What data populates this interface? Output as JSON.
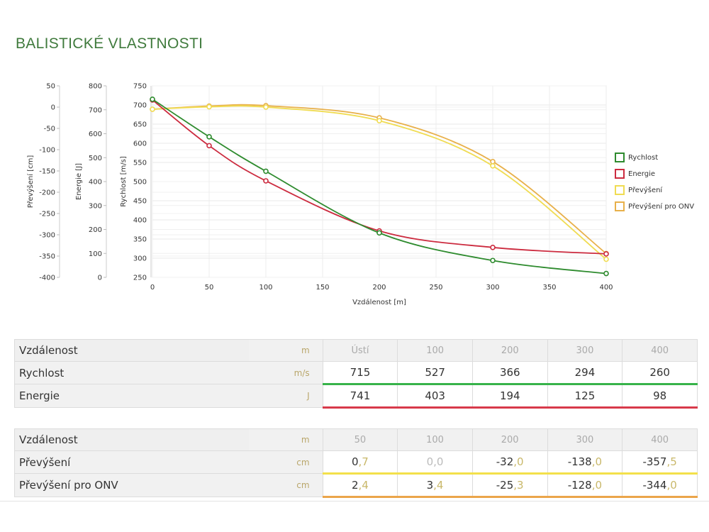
{
  "page": {
    "title": "BALISTICKÉ VLASTNOSTI"
  },
  "chart_data": {
    "type": "line",
    "x": [
      0,
      50,
      100,
      200,
      300,
      400
    ],
    "xlabel": "Vzdálenost [m]",
    "xlim": [
      0,
      400
    ],
    "xticks": [
      "0",
      "50",
      "100",
      "150",
      "200",
      "250",
      "300",
      "350",
      "400"
    ],
    "axes": [
      {
        "label": "Převýšení [cm]",
        "lim": [
          -400,
          50
        ],
        "ticks": [
          "50",
          "0",
          "-50",
          "-100",
          "-150",
          "-200",
          "-250",
          "-300",
          "-350",
          "-400"
        ]
      },
      {
        "label": "Energie [J]",
        "lim": [
          0,
          800
        ],
        "ticks": [
          "800",
          "700",
          "600",
          "500",
          "400",
          "300",
          "200",
          "100",
          "0"
        ]
      },
      {
        "label": "Rychlost [m/s]",
        "lim": [
          250,
          750
        ],
        "ticks": [
          "750",
          "700",
          "650",
          "600",
          "550",
          "500",
          "450",
          "400",
          "350",
          "300",
          "250"
        ]
      }
    ],
    "series": [
      {
        "name": "Rychlost",
        "axis": 2,
        "color": "#2e8b2e",
        "values": [
          715,
          617,
          527,
          366,
          294,
          260
        ]
      },
      {
        "name": "Energie",
        "axis": 1,
        "color": "#cc2b3f",
        "values": [
          741,
          550,
          403,
          194,
          125,
          98
        ]
      },
      {
        "name": "Převýšení",
        "axis": 0,
        "color": "#f0dc52",
        "values": [
          -5,
          0.7,
          0.0,
          -32.0,
          -138.0,
          -357.5
        ]
      },
      {
        "name": "Převýšení pro ONV",
        "axis": 0,
        "color": "#e8b04a",
        "values": [
          -5,
          2.4,
          3.4,
          -25.3,
          -128.0,
          -344.0
        ]
      }
    ],
    "grid": true,
    "legend": "right"
  },
  "table1": {
    "rows": [
      {
        "label": "Vzdálenost",
        "unit": "m",
        "values": [
          "Ústí",
          "100",
          "200",
          "300",
          "400"
        ]
      },
      {
        "label": "Rychlost",
        "unit": "m/s",
        "values": [
          "715",
          "527",
          "366",
          "294",
          "260"
        ],
        "color": "#37b34a"
      },
      {
        "label": "Energie",
        "unit": "J",
        "values": [
          "741",
          "403",
          "194",
          "125",
          "98"
        ],
        "color": "#d83a4a"
      }
    ]
  },
  "table2": {
    "rows": [
      {
        "label": "Vzdálenost",
        "unit": "m",
        "values": [
          "50",
          "100",
          "200",
          "300",
          "400"
        ]
      },
      {
        "label": "Převýšení",
        "unit": "cm",
        "values": [
          [
            "0",
            ",7"
          ],
          [
            "0",
            ",0"
          ],
          [
            "-32",
            ",0"
          ],
          [
            "-138",
            ",0"
          ],
          [
            "-357",
            ",5"
          ]
        ],
        "color": "#f3e04a"
      },
      {
        "label": "Převýšení pro ONV",
        "unit": "cm",
        "values": [
          [
            "2",
            ",4"
          ],
          [
            "3",
            ",4"
          ],
          [
            "-25",
            ",3"
          ],
          [
            "-128",
            ",0"
          ],
          [
            "-344",
            ",0"
          ]
        ],
        "color": "#eba54a"
      }
    ]
  }
}
